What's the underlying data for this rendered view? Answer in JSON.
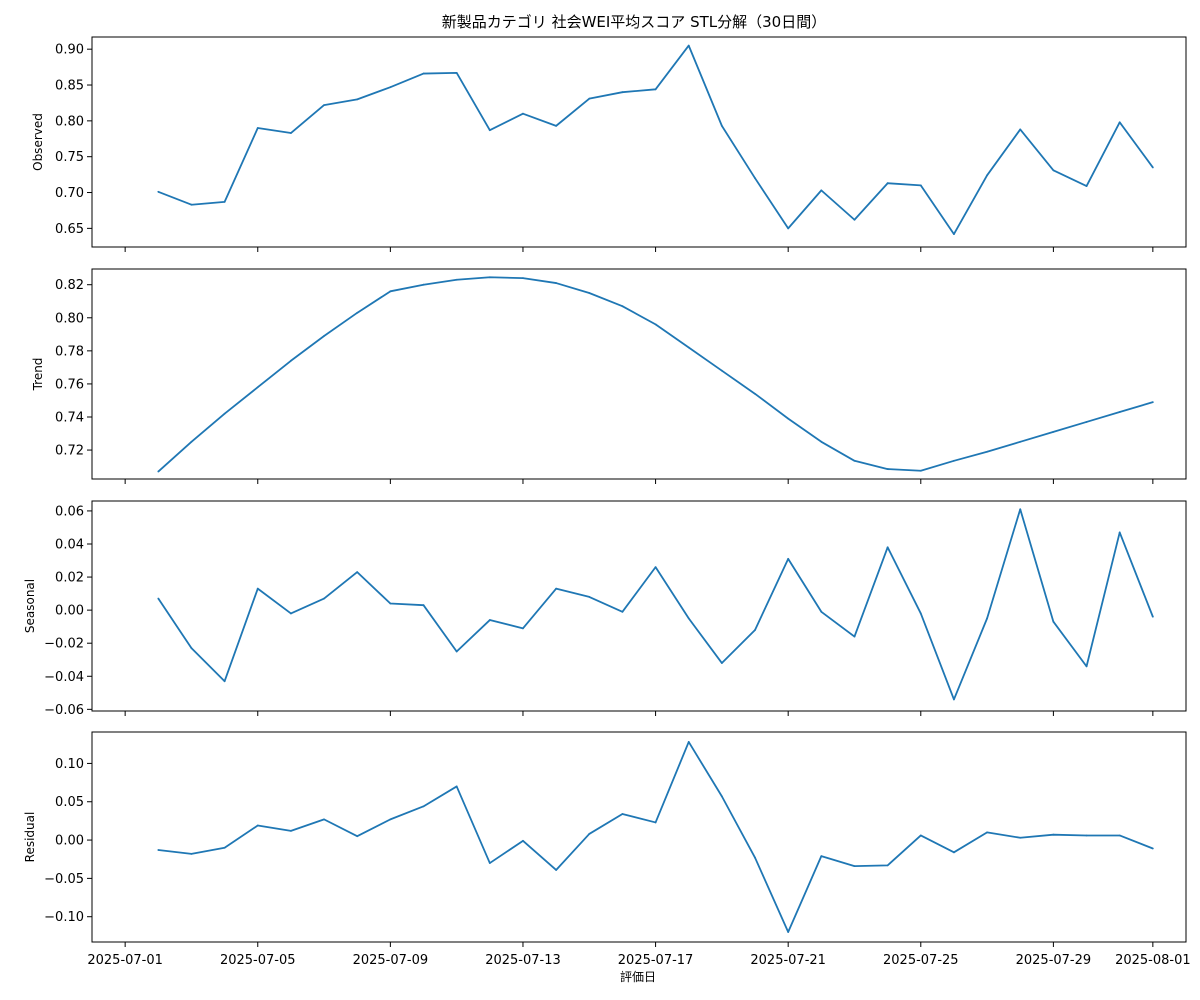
{
  "chart_data": {
    "type": "line",
    "title": "新製品カテゴリ 社会WEI平均スコア STL分解（30日間）",
    "xlabel": "評価日",
    "x": [
      "2025-07-02",
      "2025-07-03",
      "2025-07-04",
      "2025-07-05",
      "2025-07-06",
      "2025-07-07",
      "2025-07-08",
      "2025-07-09",
      "2025-07-10",
      "2025-07-11",
      "2025-07-12",
      "2025-07-13",
      "2025-07-14",
      "2025-07-15",
      "2025-07-16",
      "2025-07-17",
      "2025-07-18",
      "2025-07-19",
      "2025-07-20",
      "2025-07-21",
      "2025-07-22",
      "2025-07-23",
      "2025-07-24",
      "2025-07-25",
      "2025-07-26",
      "2025-07-27",
      "2025-07-28",
      "2025-07-29",
      "2025-07-30",
      "2025-07-31",
      "2025-08-01"
    ],
    "xticks": [
      "2025-07-01",
      "2025-07-05",
      "2025-07-09",
      "2025-07-13",
      "2025-07-17",
      "2025-07-21",
      "2025-07-25",
      "2025-07-29",
      "2025-08-01"
    ],
    "xlim": [
      "2025-06-30",
      "2025-08-02"
    ],
    "series": [
      {
        "name": "Observed",
        "ylim": [
          0.624,
          0.917
        ],
        "yticks": [
          "0.65",
          "0.70",
          "0.75",
          "0.80",
          "0.85",
          "0.90"
        ],
        "values": [
          0.701,
          0.683,
          0.687,
          0.79,
          0.783,
          0.822,
          0.83,
          0.847,
          0.866,
          0.867,
          0.787,
          0.81,
          0.793,
          0.831,
          0.84,
          0.844,
          0.905,
          0.793,
          0.72,
          0.65,
          0.703,
          0.662,
          0.713,
          0.71,
          0.642,
          0.724,
          0.788,
          0.731,
          0.709,
          0.798,
          0.735
        ]
      },
      {
        "name": "Trend",
        "ylim": [
          0.7025,
          0.8295
        ],
        "yticks": [
          "0.72",
          "0.74",
          "0.76",
          "0.78",
          "0.80",
          "0.82"
        ],
        "values": [
          0.707,
          0.725,
          0.742,
          0.758,
          0.774,
          0.789,
          0.803,
          0.816,
          0.82,
          0.823,
          0.8245,
          0.824,
          0.821,
          0.815,
          0.807,
          0.796,
          0.782,
          0.768,
          0.754,
          0.739,
          0.725,
          0.7135,
          0.7085,
          0.7075,
          0.7135,
          0.719,
          0.725,
          0.731,
          0.737,
          0.743,
          0.749
        ]
      },
      {
        "name": "Seasonal",
        "ylim": [
          -0.061,
          0.066
        ],
        "yticks": [
          "0.06",
          "0.04",
          "0.02",
          "0.00",
          "−0.02",
          "−0.04",
          "−0.06"
        ],
        "values": [
          0.007,
          -0.023,
          -0.043,
          0.013,
          -0.002,
          0.007,
          0.023,
          0.004,
          0.003,
          -0.025,
          -0.006,
          -0.011,
          0.013,
          0.008,
          -0.001,
          0.026,
          -0.005,
          -0.032,
          -0.012,
          0.031,
          -0.001,
          -0.016,
          0.038,
          -0.002,
          -0.054,
          -0.005,
          0.061,
          -0.007,
          -0.034,
          0.047,
          -0.004
        ]
      },
      {
        "name": "Residual",
        "ylim": [
          -0.133,
          0.141
        ],
        "yticks": [
          "0.10",
          "0.05",
          "0.00",
          "−0.05",
          "−0.10"
        ],
        "values": [
          -0.013,
          -0.018,
          -0.01,
          0.019,
          0.012,
          0.027,
          0.005,
          0.027,
          0.044,
          0.07,
          -0.03,
          -0.001,
          -0.039,
          0.008,
          0.034,
          0.023,
          0.128,
          0.057,
          -0.023,
          -0.12,
          -0.021,
          -0.034,
          -0.033,
          0.006,
          -0.016,
          0.01,
          0.003,
          0.007,
          0.006,
          0.006,
          -0.011
        ]
      }
    ],
    "grid": false,
    "legend": "none",
    "line_color": "#1f77b4"
  }
}
